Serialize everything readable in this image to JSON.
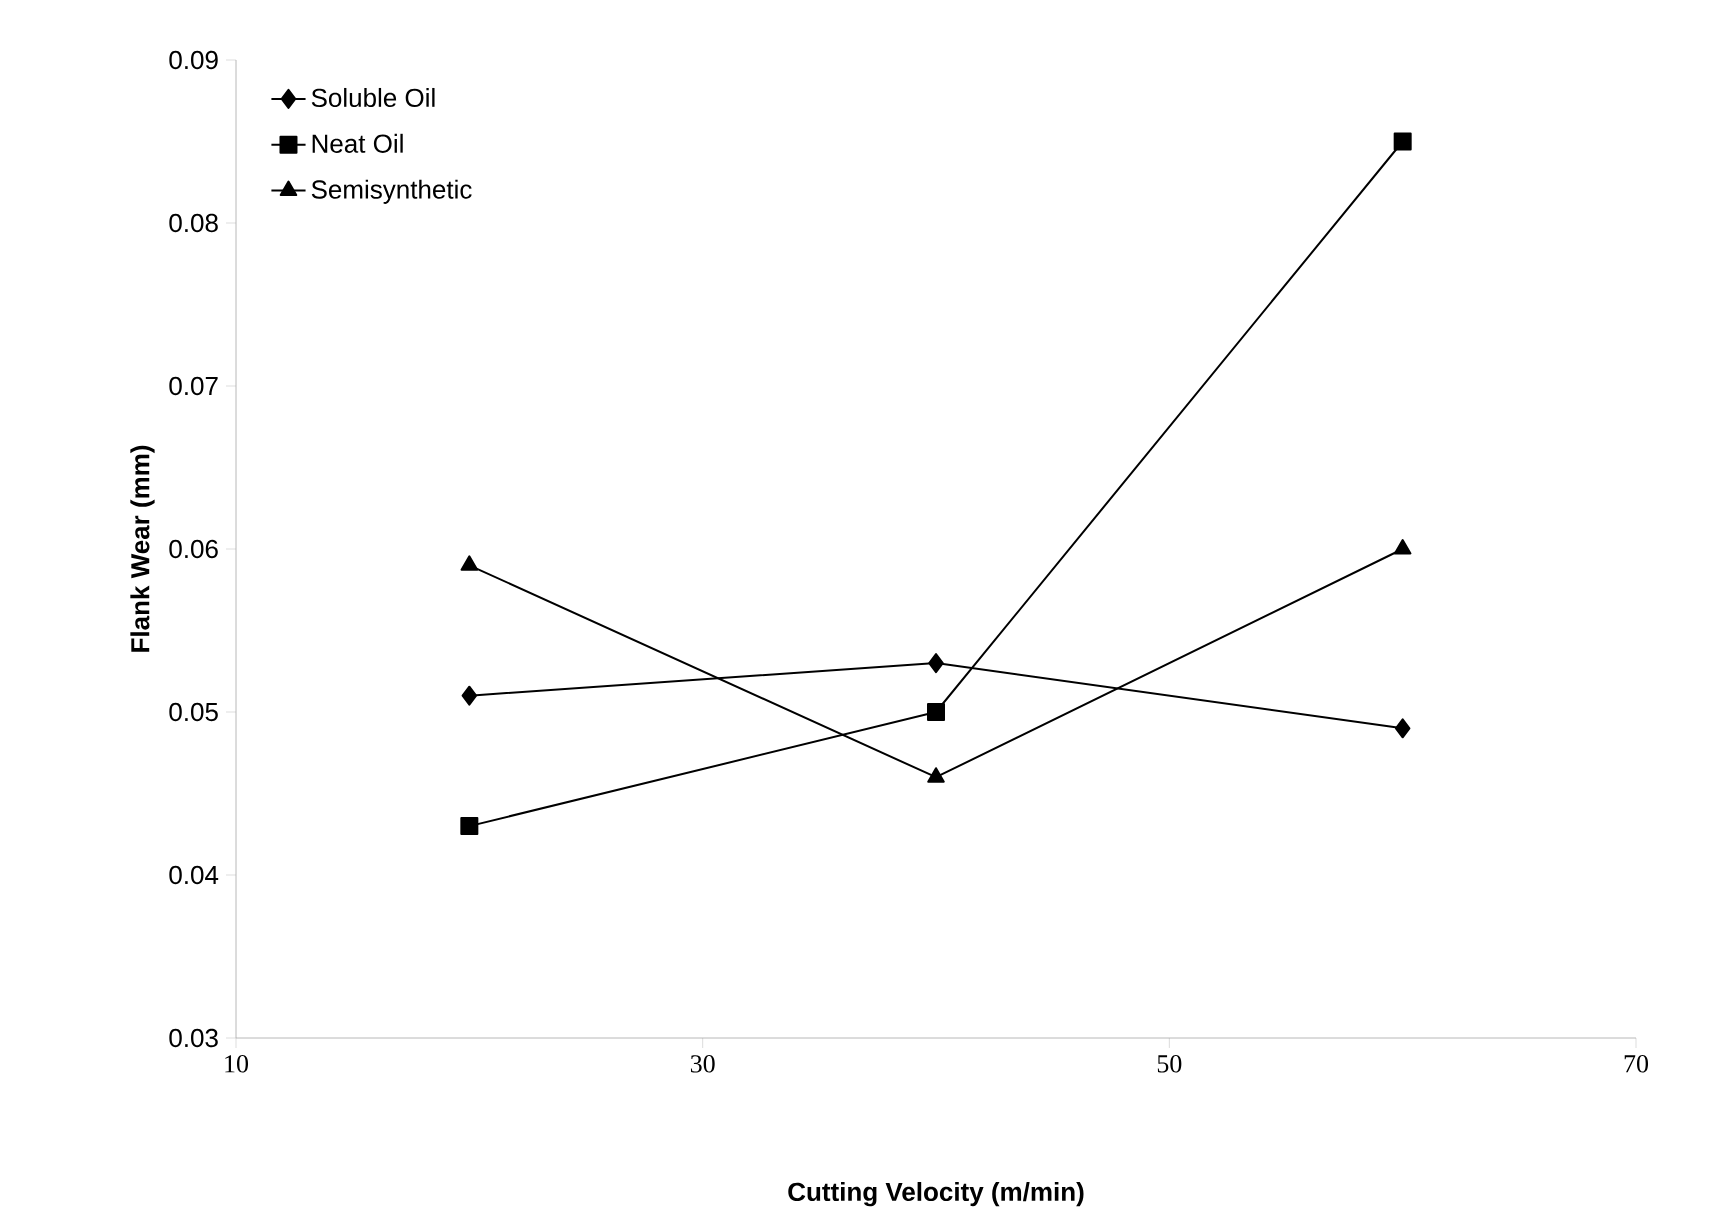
{
  "chart_data": {
    "type": "line",
    "xlabel": "Cutting Velocity (m/min)",
    "ylabel": "Flank Wear (mm)",
    "x": [
      20,
      40,
      60
    ],
    "series": [
      {
        "name": "Soluble Oil",
        "color": "#000000",
        "marker": "diamond",
        "values": [
          0.051,
          0.053,
          0.049
        ]
      },
      {
        "name": "Neat Oil",
        "color": "#000000",
        "marker": "square",
        "values": [
          0.043,
          0.05,
          0.085
        ]
      },
      {
        "name": "Semisynthetic",
        "color": "#000000",
        "marker": "triangle",
        "values": [
          0.059,
          0.046,
          0.06
        ]
      }
    ],
    "xlim": [
      10,
      70
    ],
    "xticks": [
      10,
      30,
      50,
      70
    ],
    "ylim": [
      0.03,
      0.09
    ],
    "yticks": [
      0.03,
      0.04,
      0.05,
      0.06,
      0.07,
      0.08,
      0.09
    ],
    "grid": false,
    "legend": "top left",
    "line_style": "solid"
  }
}
